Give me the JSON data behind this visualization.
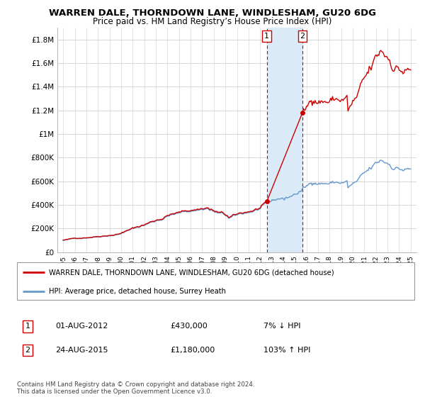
{
  "title": "WARREN DALE, THORNDOWN LANE, WINDLESHAM, GU20 6DG",
  "subtitle": "Price paid vs. HM Land Registry’s House Price Index (HPI)",
  "legend_line1": "WARREN DALE, THORNDOWN LANE, WINDLESHAM, GU20 6DG (detached house)",
  "legend_line2": "HPI: Average price, detached house, Surrey Heath",
  "transaction1_label": "1",
  "transaction1_date": "01-AUG-2012",
  "transaction1_price": "£430,000",
  "transaction1_pct": "7% ↓ HPI",
  "transaction2_label": "2",
  "transaction2_date": "24-AUG-2015",
  "transaction2_price": "£1,180,000",
  "transaction2_pct": "103% ↑ HPI",
  "footnote": "Contains HM Land Registry data © Crown copyright and database right 2024.\nThis data is licensed under the Open Government Licence v3.0.",
  "property_color": "#cc0000",
  "hpi_color": "#6699cc",
  "shade_color": "#daeaf7",
  "transaction1_x": 2012.583,
  "transaction2_x": 2015.65,
  "transaction1_y": 430000,
  "transaction2_y": 1180000,
  "ylim": [
    0,
    1900000
  ],
  "xlim": [
    1994.5,
    2025.5
  ],
  "yticks": [
    0,
    200000,
    400000,
    600000,
    800000,
    1000000,
    1200000,
    1400000,
    1600000,
    1800000
  ],
  "ytick_labels": [
    "£0",
    "£200K",
    "£400K",
    "£600K",
    "£800K",
    "£1M",
    "£1.2M",
    "£1.4M",
    "£1.6M",
    "£1.8M"
  ]
}
